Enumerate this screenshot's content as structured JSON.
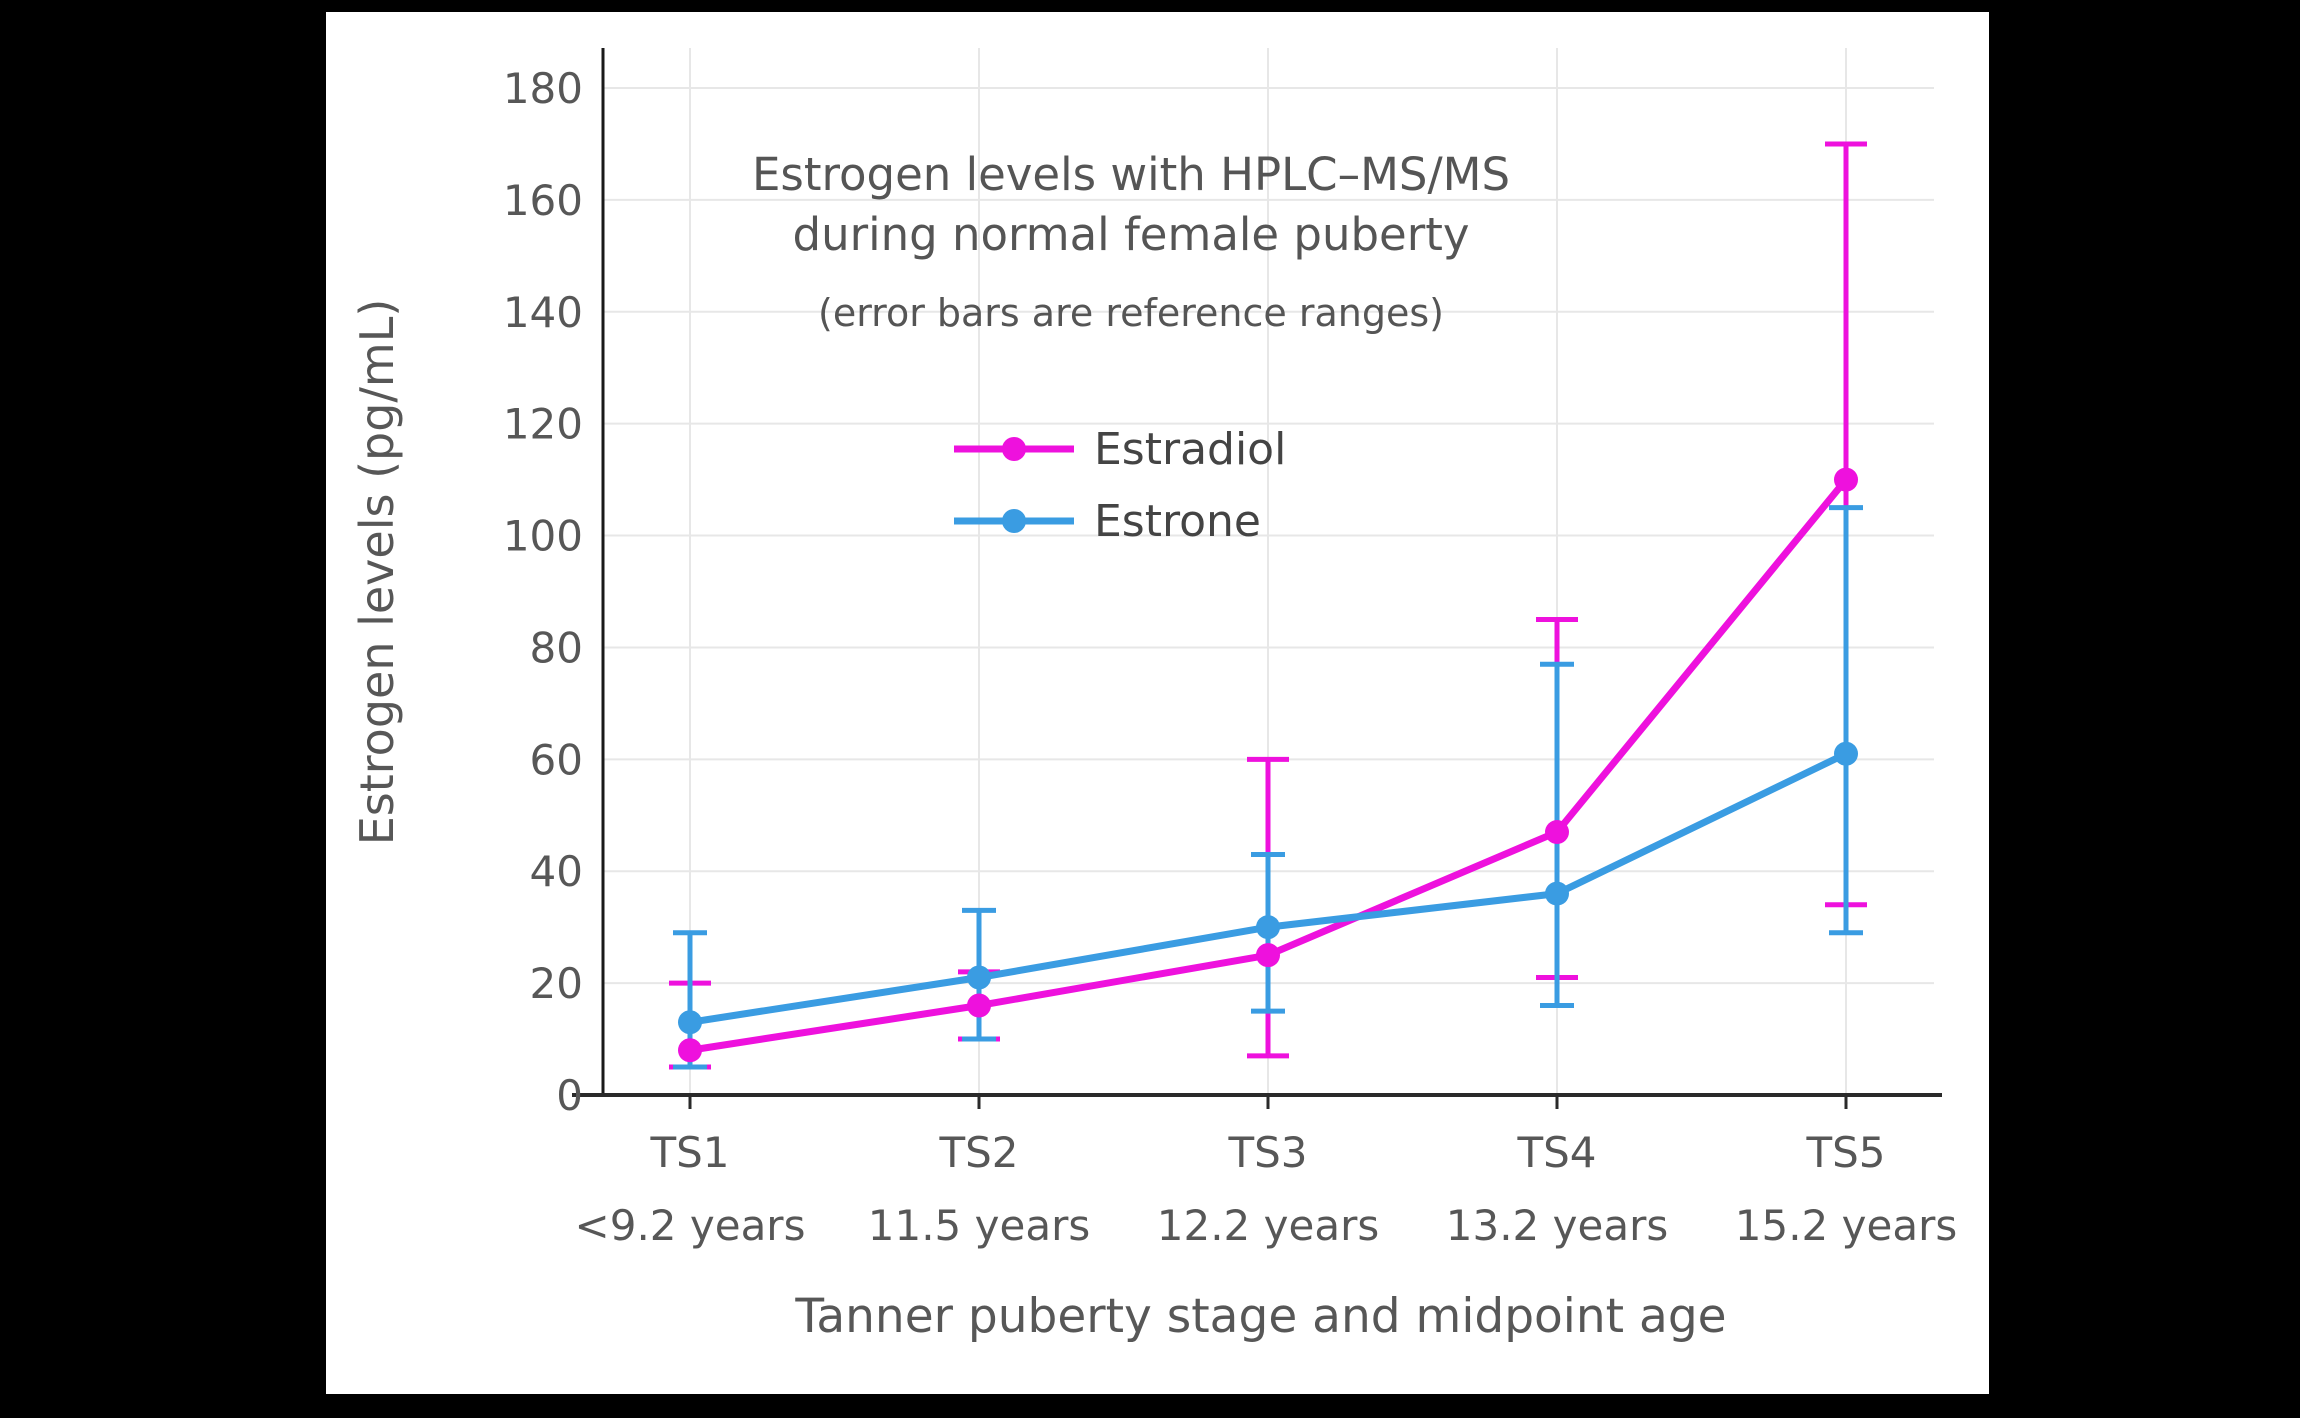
{
  "page": {
    "background_color": "#000000",
    "card_background": "#ffffff"
  },
  "chart_data": {
    "type": "line",
    "title_lines": [
      "Estrogen levels with HPLC–MS/MS",
      "during normal female puberty"
    ],
    "subtitle": "(error bars are reference ranges)",
    "xlabel": "Tanner puberty stage and midpoint age",
    "ylabel": "Estrogen levels (pg/mL)",
    "categories": [
      "TS1",
      "TS2",
      "TS3",
      "TS4",
      "TS5"
    ],
    "category_sublabels": [
      "<9.2 years",
      "11.5 years",
      "12.2 years",
      "13.2 years",
      "15.2 years"
    ],
    "yticks": [
      0,
      20,
      40,
      60,
      80,
      100,
      120,
      140,
      160,
      180
    ],
    "ylim": [
      0,
      187
    ],
    "grid": true,
    "legend_position": "inside-top-center",
    "colors": {
      "grid": "#e7e7e7",
      "axis": "#2a2a2a",
      "text": "#575757"
    },
    "series": [
      {
        "name": "Estradiol",
        "color": "#ee11dd",
        "values": [
          8,
          16,
          25,
          47,
          110
        ],
        "error_low": [
          5,
          10,
          7,
          21,
          34
        ],
        "error_high": [
          20,
          22,
          60,
          85,
          170
        ]
      },
      {
        "name": "Estrone",
        "color": "#3a9ce2",
        "values": [
          13,
          21,
          30,
          36,
          61
        ],
        "error_low": [
          5,
          10,
          15,
          16,
          29
        ],
        "error_high": [
          29,
          33,
          43,
          77,
          105
        ]
      }
    ]
  }
}
